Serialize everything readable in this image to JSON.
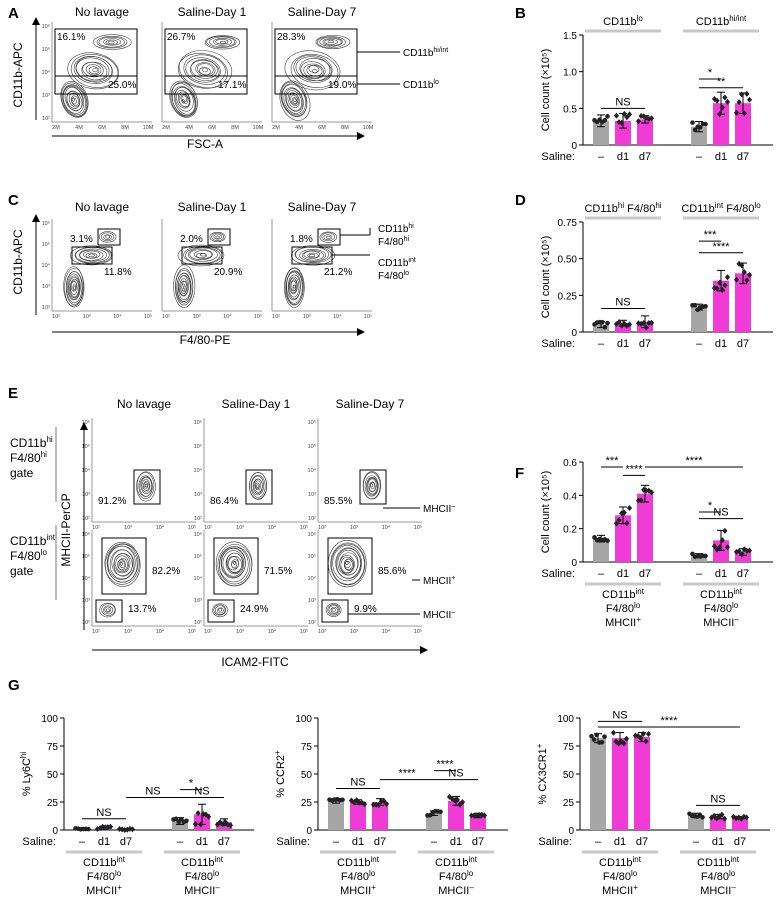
{
  "figure": {
    "panel_labels": [
      "A",
      "B",
      "C",
      "D",
      "E",
      "F",
      "G"
    ],
    "colors": {
      "gray": "#a6a6a6",
      "magenta": "#f03bd6",
      "dark": "#333333",
      "contour": "#3f3f3f"
    },
    "saline_label": "Saline:",
    "xtick_labels": [
      "–",
      "d1",
      "d7"
    ],
    "flow_x_ticks_fsc": [
      "2M",
      "4M",
      "6M",
      "8M",
      "10M"
    ],
    "flow_log_ticks": [
      "10²",
      "10³",
      "10⁴",
      "10⁵"
    ],
    "flow_y_ticks": [
      "10²",
      "10³",
      "10⁴",
      "10⁵",
      "10⁶"
    ]
  },
  "panel_a": {
    "x_label": "FSC-A",
    "y_label": "CD11b-APC",
    "plots": [
      {
        "title": "No lavage",
        "upper_pct": "16.1%",
        "lower_pct": "25.0%"
      },
      {
        "title": "Saline-Day 1",
        "upper_pct": "26.7%",
        "lower_pct": "17.1%"
      },
      {
        "title": "Saline-Day 7",
        "upper_pct": "28.3%",
        "lower_pct": "19.0%"
      }
    ],
    "gate_labels": {
      "upper": "CD11b",
      "upper_sup": "hi/int",
      "lower": "CD11b",
      "lower_sup": "lo"
    }
  },
  "panel_c": {
    "x_label": "F4/80-PE",
    "y_label": "CD11b-APC",
    "plots": [
      {
        "title": "No lavage",
        "hi_pct": "3.1%",
        "int_pct": "11.8%"
      },
      {
        "title": "Saline-Day 1",
        "hi_pct": "2.0%",
        "int_pct": "20.9%"
      },
      {
        "title": "Saline-Day 7",
        "hi_pct": "1.8%",
        "int_pct": "21.2%"
      }
    ],
    "gate_labels": {
      "hi_line1": "CD11b",
      "hi_line1_sup": "hi",
      "hi_line2": "F4/80",
      "hi_line2_sup": "hi",
      "int_line1": "CD11b",
      "int_line1_sup": "int",
      "int_line2": "F4/80",
      "int_line2_sup": "lo"
    }
  },
  "panel_e": {
    "x_label": "ICAM2-FITC",
    "y_label": "MHCII-PerCP",
    "columns": [
      "No lavage",
      "Saline-Day 1",
      "Saline-Day 7"
    ],
    "row_labels": [
      {
        "line1": "CD11b",
        "line1_sup": "hi",
        "line2": "F4/80",
        "line2_sup": "hi",
        "line3": "gate"
      },
      {
        "line1": "CD11b",
        "line1_sup": "int",
        "line2": "F4/80",
        "line2_sup": "lo",
        "line3": "gate"
      }
    ],
    "row1_pcts": [
      "91.2%",
      "86.4%",
      "85.5%"
    ],
    "row2_upper_pcts": [
      "82.2%",
      "71.5%",
      "85.6%"
    ],
    "row2_lower_pcts": [
      "13.7%",
      "24.9%",
      "9.9%"
    ],
    "gate_labels": {
      "minus": "MHCII",
      "minus_sup": "–",
      "plus": "MHCII",
      "plus_sup": "+"
    }
  },
  "chart_data": [
    {
      "panel": "B",
      "type": "bar",
      "ylabel": "Cell count (×10⁵)",
      "ylim": [
        0,
        1.5
      ],
      "yticks": [
        "0",
        "0.5",
        "1.0",
        "1.5"
      ],
      "groups": [
        {
          "header": "CD11b",
          "header_sup": "lo",
          "categories": [
            "–",
            "d1",
            "d7"
          ],
          "values": [
            0.33,
            0.33,
            0.35
          ],
          "errors": [
            0.08,
            0.1,
            0.05
          ]
        },
        {
          "header": "CD11b",
          "header_sup": "hi/int",
          "categories": [
            "–",
            "d1",
            "d7"
          ],
          "values": [
            0.25,
            0.57,
            0.57
          ],
          "errors": [
            0.07,
            0.15,
            0.14
          ]
        }
      ],
      "annotations": [
        {
          "label": "NS",
          "group": 0,
          "from": 0,
          "to": 2,
          "y": 0.5
        },
        {
          "label": "*",
          "group": 1,
          "from": 0,
          "to": 1,
          "y": 0.9
        },
        {
          "label": "**",
          "group": 1,
          "from": 0,
          "to": 2,
          "y": 0.78
        }
      ]
    },
    {
      "panel": "D",
      "type": "bar",
      "ylabel": "Cell count (×10⁵)",
      "ylim": [
        0,
        0.75
      ],
      "yticks": [
        "0",
        "0.25",
        "0.50",
        "0.75"
      ],
      "groups": [
        {
          "header": "CD11b",
          "header_sup": "hi",
          "header2": " F4/80",
          "header2_sup": "hi",
          "categories": [
            "–",
            "d1",
            "d7"
          ],
          "values": [
            0.05,
            0.06,
            0.07
          ],
          "errors": [
            0.02,
            0.02,
            0.04
          ]
        },
        {
          "header": "CD11b",
          "header_sup": "int",
          "header2": " F4/80",
          "header2_sup": "lo",
          "categories": [
            "–",
            "d1",
            "d7"
          ],
          "values": [
            0.17,
            0.35,
            0.4
          ],
          "errors": [
            0.02,
            0.07,
            0.07
          ]
        }
      ],
      "annotations": [
        {
          "label": "NS",
          "group": 0,
          "from": 0,
          "to": 2,
          "y": 0.16
        },
        {
          "label": "***",
          "group": 1,
          "from": 0,
          "to": 1,
          "y": 0.62
        },
        {
          "label": "****",
          "group": 1,
          "from": 0,
          "to": 2,
          "y": 0.54
        }
      ]
    },
    {
      "panel": "F",
      "type": "bar",
      "ylabel": "Cell count (×10⁵)",
      "ylim": [
        0,
        0.6
      ],
      "yticks": [
        "0",
        "0.2",
        "0.4",
        "0.6"
      ],
      "groups": [
        {
          "footer": [
            "CD11b",
            "F4/80",
            "MHCII"
          ],
          "footer_sups": [
            "int",
            "lo",
            "+"
          ],
          "categories": [
            "–",
            "d1",
            "d7"
          ],
          "values": [
            0.14,
            0.28,
            0.41
          ],
          "errors": [
            0.02,
            0.05,
            0.05
          ]
        },
        {
          "footer": [
            "CD11b",
            "F4/80",
            "MHCII"
          ],
          "footer_sups": [
            "int",
            "lo",
            "–"
          ],
          "categories": [
            "–",
            "d1",
            "d7"
          ],
          "values": [
            0.04,
            0.13,
            0.06
          ],
          "errors": [
            0.01,
            0.06,
            0.02
          ]
        }
      ],
      "annotations": [
        {
          "label": "***",
          "group": 0,
          "from": 0,
          "to": 1,
          "y": 0.57
        },
        {
          "label": "****",
          "group": 0,
          "from": 1,
          "to": 2,
          "y": 0.52,
          "span": [
            0,
            1,
            0,
            2
          ]
        },
        {
          "label": "****",
          "group": 0,
          "from": 2,
          "to": 2,
          "y": 0.57,
          "span": [
            0,
            2,
            1,
            2
          ]
        },
        {
          "label": "*",
          "group": 1,
          "from": 0,
          "to": 1,
          "y": 0.3
        },
        {
          "label": "NS",
          "group": 1,
          "from": 0,
          "to": 2,
          "y": 0.26
        }
      ]
    },
    {
      "panel": "G1",
      "type": "bar",
      "ylabel": "% Ly6C",
      "ylabel_sup": "hi",
      "ylim": [
        0,
        100
      ],
      "yticks": [
        "0",
        "25",
        "50",
        "75",
        "100"
      ],
      "groups": [
        {
          "footer": [
            "CD11b",
            "F4/80",
            "MHCII"
          ],
          "footer_sups": [
            "int",
            "lo",
            "+"
          ],
          "categories": [
            "–",
            "d1",
            "d7"
          ],
          "values": [
            1,
            2,
            0.5
          ],
          "errors": [
            0.5,
            1.5,
            0.5
          ]
        },
        {
          "footer": [
            "CD11b",
            "F4/80",
            "MHCII"
          ],
          "footer_sups": [
            "int",
            "lo",
            "–"
          ],
          "categories": [
            "–",
            "d1",
            "d7"
          ],
          "values": [
            8,
            14,
            7
          ],
          "errors": [
            3,
            9,
            3
          ]
        }
      ],
      "annotations": [
        {
          "label": "NS",
          "group": 0,
          "from": 0,
          "to": 2,
          "y": 10
        },
        {
          "label": "NS",
          "group": 0,
          "from": 2,
          "to": 2,
          "y": 29,
          "span": [
            0,
            2,
            1,
            0
          ]
        },
        {
          "label": "*",
          "group": 1,
          "from": 0,
          "to": 1,
          "y": 36
        },
        {
          "label": "NS",
          "group": 1,
          "from": 0,
          "to": 2,
          "y": 29
        }
      ]
    },
    {
      "panel": "G2",
      "type": "bar",
      "ylabel": "% CCR2",
      "ylabel_sup": "+",
      "ylim": [
        0,
        100
      ],
      "yticks": [
        "0",
        "25",
        "50",
        "75",
        "100"
      ],
      "groups": [
        {
          "footer": [
            "CD11b",
            "F4/80",
            "MHCII"
          ],
          "footer_sups": [
            "int",
            "lo",
            "+"
          ],
          "categories": [
            "–",
            "d1",
            "d7"
          ],
          "values": [
            26,
            25,
            25
          ],
          "errors": [
            2,
            2,
            3
          ]
        },
        {
          "footer": [
            "CD11b",
            "F4/80",
            "MHCII"
          ],
          "footer_sups": [
            "int",
            "lo",
            "–"
          ],
          "categories": [
            "–",
            "d1",
            "d7"
          ],
          "values": [
            15,
            26,
            13
          ],
          "errors": [
            2,
            4,
            2
          ]
        }
      ],
      "annotations": [
        {
          "label": "NS",
          "group": 0,
          "from": 0,
          "to": 2,
          "y": 37
        },
        {
          "label": "****",
          "group": 0,
          "from": 2,
          "to": 2,
          "y": 45,
          "span": [
            0,
            2,
            1,
            0
          ]
        },
        {
          "label": "****",
          "group": 1,
          "from": 0,
          "to": 1,
          "y": 53
        },
        {
          "label": "NS",
          "group": 1,
          "from": 0,
          "to": 2,
          "y": 45
        }
      ]
    },
    {
      "panel": "G3",
      "type": "bar",
      "ylabel": "% CX3CR1",
      "ylabel_sup": "+",
      "ylim": [
        0,
        100
      ],
      "yticks": [
        "0",
        "25",
        "50",
        "75",
        "100"
      ],
      "groups": [
        {
          "footer": [
            "CD11b",
            "F4/80",
            "MHCII"
          ],
          "footer_sups": [
            "int",
            "lo",
            "+"
          ],
          "categories": [
            "–",
            "d1",
            "d7"
          ],
          "values": [
            82,
            82,
            83
          ],
          "errors": [
            4,
            5,
            4
          ]
        },
        {
          "footer": [
            "CD11b",
            "F4/80",
            "MHCII"
          ],
          "footer_sups": [
            "int",
            "lo",
            "–"
          ],
          "categories": [
            "–",
            "d1",
            "d7"
          ],
          "values": [
            13,
            12,
            11
          ],
          "errors": [
            2,
            2,
            1
          ]
        }
      ],
      "annotations": [
        {
          "label": "NS",
          "group": 0,
          "from": 0,
          "to": 2,
          "y": 97
        },
        {
          "label": "****",
          "group": 0,
          "from": 2,
          "to": 2,
          "y": 92,
          "span": [
            0,
            0,
            1,
            2
          ]
        },
        {
          "label": "NS",
          "group": 1,
          "from": 0,
          "to": 2,
          "y": 22
        }
      ]
    }
  ]
}
